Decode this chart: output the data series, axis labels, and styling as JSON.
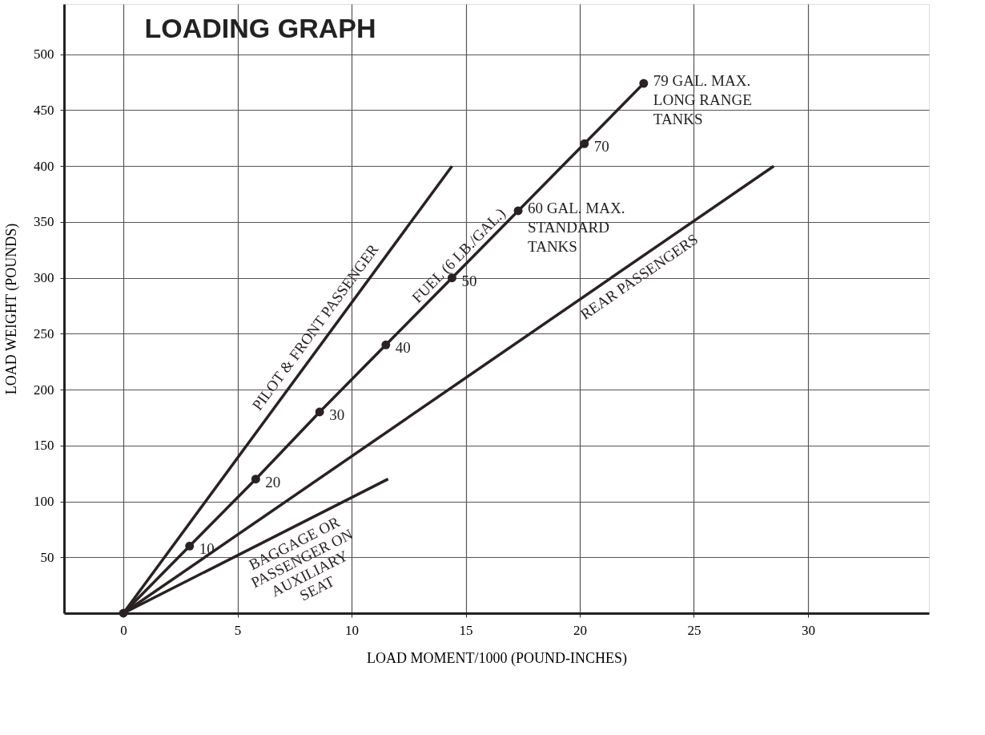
{
  "chart_data": {
    "type": "line",
    "title": "LOADING GRAPH",
    "xlabel": "LOAD MOMENT/1000 (POUND-INCHES)",
    "ylabel": "LOAD WEIGHT (POUNDS)",
    "xlim": [
      -2.6,
      35.3
    ],
    "ylim": [
      0,
      545
    ],
    "xticks": [
      0,
      5,
      10,
      15,
      20,
      25,
      30
    ],
    "yticks": [
      50,
      100,
      150,
      200,
      250,
      300,
      350,
      400,
      450,
      500
    ],
    "grid": true,
    "line_style": "solid",
    "series": [
      {
        "name": "PILOT & FRONT PASSENGER",
        "color": "#2a2222",
        "x": [
          0,
          14.4
        ],
        "values": [
          0,
          400
        ]
      },
      {
        "name": "FUEL (6 LB./GAL.)",
        "color": "#2a2222",
        "marker": "circle",
        "x": [
          0,
          2.9,
          5.8,
          8.6,
          11.5,
          14.4,
          17.3,
          20.2,
          22.8
        ],
        "values": [
          0,
          60,
          120,
          180,
          240,
          300,
          360,
          420,
          474
        ]
      },
      {
        "name": "REAR PASSENGERS",
        "color": "#2a2222",
        "x": [
          0,
          28.5
        ],
        "values": [
          0,
          400
        ]
      },
      {
        "name": "BAGGAGE OR\nPASSENGER ON\nAUXILIARY\nSEAT",
        "color": "#2a2222",
        "x": [
          0,
          11.6
        ],
        "values": [
          0,
          120
        ]
      }
    ],
    "annotations": [
      {
        "text": "10",
        "x": 2.9,
        "y": 60
      },
      {
        "text": "20",
        "x": 5.8,
        "y": 120
      },
      {
        "text": "30",
        "x": 8.6,
        "y": 180
      },
      {
        "text": "40",
        "x": 11.5,
        "y": 240
      },
      {
        "text": "50",
        "x": 14.4,
        "y": 300
      },
      {
        "text": "70",
        "x": 20.2,
        "y": 420
      },
      {
        "text": "79 GAL. MAX.\nLONG RANGE\nTANKS",
        "x": 22.8,
        "y": 474
      },
      {
        "text": "60 GAL. MAX.\nSTANDARD\nTANKS",
        "x": 17.3,
        "y": 360
      }
    ]
  }
}
